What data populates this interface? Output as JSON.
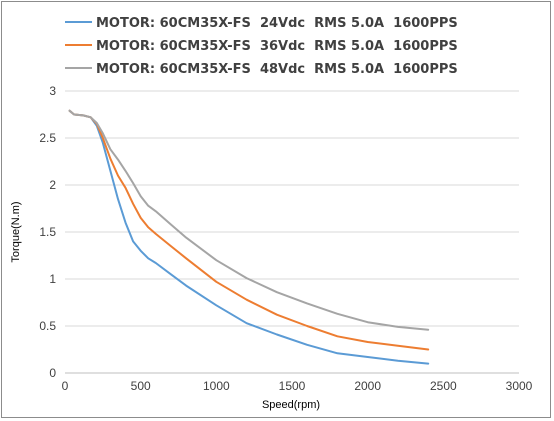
{
  "chart_data": {
    "type": "line",
    "title": "",
    "xlabel": "Speed(rpm)",
    "ylabel": "Torque(N.m)",
    "xlim": [
      0,
      3000
    ],
    "ylim": [
      0,
      3
    ],
    "x_ticks": [
      0,
      500,
      1000,
      1500,
      2000,
      2500,
      3000
    ],
    "y_ticks": [
      0,
      0.5,
      1,
      1.5,
      2,
      2.5,
      3
    ],
    "x_tick_labels": [
      "0",
      "500",
      "1000",
      "1500",
      "2000",
      "2500",
      "3000"
    ],
    "y_tick_labels": [
      "0",
      "0.5",
      "1",
      "1.5",
      "2",
      "2.5",
      "3"
    ],
    "grid": "horizontal",
    "legend": "top-left",
    "series": [
      {
        "name": "MOTOR: 60CM35X-FS  24Vdc  RMS 5.0A  1600PPS",
        "color": "#5b9bd5",
        "points": [
          [
            30,
            2.79
          ],
          [
            60,
            2.75
          ],
          [
            120,
            2.74
          ],
          [
            170,
            2.72
          ],
          [
            210,
            2.63
          ],
          [
            250,
            2.45
          ],
          [
            300,
            2.15
          ],
          [
            350,
            1.85
          ],
          [
            400,
            1.6
          ],
          [
            450,
            1.4
          ],
          [
            500,
            1.3
          ],
          [
            550,
            1.22
          ],
          [
            600,
            1.17
          ],
          [
            700,
            1.05
          ],
          [
            800,
            0.93
          ],
          [
            1000,
            0.72
          ],
          [
            1200,
            0.53
          ],
          [
            1400,
            0.41
          ],
          [
            1600,
            0.3
          ],
          [
            1800,
            0.21
          ],
          [
            2000,
            0.17
          ],
          [
            2200,
            0.13
          ],
          [
            2400,
            0.1
          ]
        ]
      },
      {
        "name": "MOTOR: 60CM35X-FS  36Vdc  RMS 5.0A  1600PPS",
        "color": "#ed7d31",
        "points": [
          [
            30,
            2.79
          ],
          [
            60,
            2.75
          ],
          [
            120,
            2.74
          ],
          [
            170,
            2.72
          ],
          [
            210,
            2.65
          ],
          [
            250,
            2.5
          ],
          [
            300,
            2.28
          ],
          [
            350,
            2.1
          ],
          [
            400,
            1.97
          ],
          [
            450,
            1.8
          ],
          [
            500,
            1.65
          ],
          [
            550,
            1.55
          ],
          [
            600,
            1.48
          ],
          [
            700,
            1.35
          ],
          [
            800,
            1.22
          ],
          [
            1000,
            0.97
          ],
          [
            1200,
            0.78
          ],
          [
            1400,
            0.62
          ],
          [
            1600,
            0.5
          ],
          [
            1800,
            0.39
          ],
          [
            2000,
            0.33
          ],
          [
            2200,
            0.29
          ],
          [
            2400,
            0.25
          ]
        ]
      },
      {
        "name": "MOTOR: 60CM35X-FS  48Vdc  RMS 5.0A  1600PPS",
        "color": "#a5a5a5",
        "points": [
          [
            30,
            2.79
          ],
          [
            60,
            2.75
          ],
          [
            120,
            2.74
          ],
          [
            170,
            2.72
          ],
          [
            210,
            2.66
          ],
          [
            250,
            2.55
          ],
          [
            300,
            2.38
          ],
          [
            350,
            2.27
          ],
          [
            400,
            2.15
          ],
          [
            450,
            2.02
          ],
          [
            500,
            1.88
          ],
          [
            550,
            1.78
          ],
          [
            600,
            1.72
          ],
          [
            700,
            1.58
          ],
          [
            800,
            1.44
          ],
          [
            1000,
            1.2
          ],
          [
            1200,
            1.01
          ],
          [
            1400,
            0.86
          ],
          [
            1600,
            0.74
          ],
          [
            1800,
            0.63
          ],
          [
            2000,
            0.54
          ],
          [
            2200,
            0.49
          ],
          [
            2400,
            0.46
          ]
        ]
      }
    ]
  }
}
